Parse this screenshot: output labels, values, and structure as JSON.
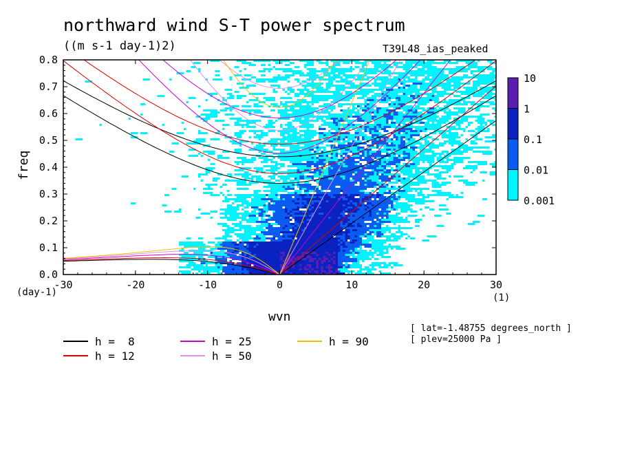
{
  "chart_data": {
    "type": "heatmap",
    "title": "northward wind S-T power spectrum",
    "units": "((m s-1 day-1)2)",
    "run_label": "T39L48_ias_peaked",
    "xlabel": "wvn",
    "ylabel": "freq",
    "x_unit": "(day-1)",
    "x_scale_unit": "(1)",
    "xlim": [
      -30,
      30
    ],
    "ylim": [
      0.0,
      0.8
    ],
    "xticks": [
      "-30",
      "-20",
      "-10",
      "0",
      "10",
      "20",
      "30"
    ],
    "yticks": [
      "0.0",
      "0.1",
      "0.2",
      "0.3",
      "0.4",
      "0.5",
      "0.6",
      "0.7",
      "0.8"
    ],
    "colorbar": {
      "levels": [
        "10",
        "1",
        "0.1",
        "0.01",
        "0.001"
      ],
      "colors": [
        "#5a1fb0",
        "#0a22c0",
        "#0a5cf0",
        "#00f4ff"
      ]
    },
    "dispersion_curves": [
      {
        "name": "h =  8",
        "color": "#000000"
      },
      {
        "name": "h = 12",
        "color": "#e00000"
      },
      {
        "name": "h = 25",
        "color": "#d000c8"
      },
      {
        "name": "h = 50",
        "color": "#e090e8"
      },
      {
        "name": "h = 90",
        "color": "#f0c000"
      }
    ],
    "annotations": [
      "[ lat=-1.48755 degrees_north ]",
      "[ plev=25000 Pa ]"
    ]
  }
}
